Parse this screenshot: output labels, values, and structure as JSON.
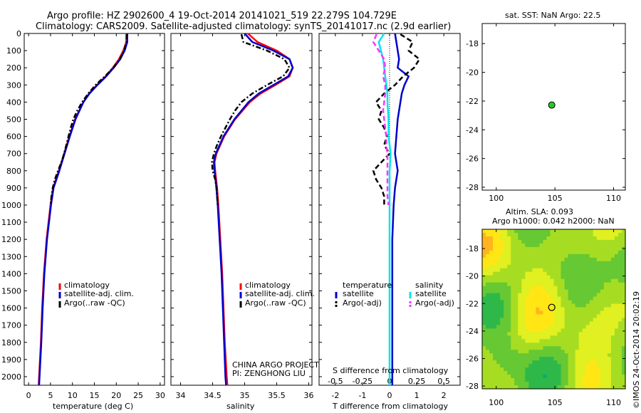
{
  "header": {
    "line1": "Argo profile: HZ 2902600_4 19-Oct-2014 20141021_519 22.279S 104.729E",
    "line2": "Climatology: CARS2009. Satellite-adjusted climatology: synTS_20141017.nc (2.9d earlier)"
  },
  "colors": {
    "climatology": "#ff0000",
    "satellite": "#0000cc",
    "argo": "#000000",
    "sal_sat": "#00e5ee",
    "sal_argo": "#ff33ff"
  },
  "chart_data": [
    {
      "type": "line",
      "panel": "temperature",
      "xlabel": "temperature (deg C)",
      "xlim": [
        -1,
        31
      ],
      "ylim": [
        2050,
        0
      ],
      "x_ticks": [
        "0",
        "5",
        "10",
        "15",
        "20",
        "25",
        "30"
      ],
      "y_ticks": [
        "0",
        "100",
        "200",
        "300",
        "400",
        "500",
        "600",
        "700",
        "800",
        "900",
        "1000",
        "1100",
        "1200",
        "1300",
        "1400",
        "1500",
        "1600",
        "1700",
        "1800",
        "1900",
        "2000"
      ],
      "legend": [
        "climatology",
        "satellite-adj. clim.",
        "Argo(..raw -QC)"
      ],
      "series": [
        {
          "name": "climatology",
          "depth": [
            0,
            50,
            100,
            150,
            200,
            250,
            300,
            350,
            400,
            500,
            600,
            700,
            800,
            900,
            1000,
            1200,
            1400,
            1600,
            1800,
            2000,
            2050
          ],
          "values": [
            22.3,
            22.3,
            21.6,
            20.6,
            19.2,
            17.6,
            15.6,
            13.8,
            12.5,
            10.6,
            9.3,
            8.1,
            6.9,
            5.6,
            5.0,
            4.1,
            3.5,
            3.1,
            2.8,
            2.4,
            2.3
          ]
        },
        {
          "name": "satellite-adj. clim.",
          "depth": [
            0,
            50,
            100,
            150,
            200,
            250,
            300,
            350,
            400,
            500,
            600,
            700,
            800,
            900,
            1000,
            1200,
            1400,
            1600,
            1800,
            2000,
            2050
          ],
          "values": [
            22.5,
            22.5,
            21.9,
            20.9,
            19.4,
            17.7,
            15.7,
            13.9,
            12.5,
            10.7,
            9.4,
            8.2,
            7.0,
            5.7,
            5.1,
            4.2,
            3.6,
            3.2,
            2.9,
            2.5,
            2.4
          ]
        },
        {
          "name": "Argo(..raw -QC)",
          "depth": [
            5,
            50,
            100,
            150,
            200,
            250,
            300,
            350,
            400,
            450,
            500,
            550,
            600,
            650,
            700,
            750,
            800,
            850,
            900,
            950,
            1000
          ],
          "values": [
            22.4,
            22.3,
            21.8,
            20.8,
            19.3,
            17.4,
            15.3,
            13.6,
            12.2,
            11.1,
            10.2,
            9.6,
            9.1,
            8.6,
            8.1,
            7.5,
            6.7,
            6.0,
            5.5,
            5.2,
            5.0
          ]
        }
      ]
    },
    {
      "type": "line",
      "panel": "salinity",
      "xlabel": "salinity",
      "xlim": [
        33.85,
        36.05
      ],
      "ylim": [
        2050,
        0
      ],
      "x_ticks": [
        "34",
        "34.5",
        "35",
        "35.5",
        "36"
      ],
      "legend": [
        "climatology",
        "satellite-adj. clim.",
        "Argo(..raw -QC)"
      ],
      "series": [
        {
          "name": "climatology",
          "depth": [
            0,
            50,
            100,
            150,
            200,
            250,
            300,
            350,
            400,
            500,
            600,
            700,
            750,
            800,
            900,
            1000,
            1200,
            1400,
            1600,
            1800,
            2000,
            2050
          ],
          "values": [
            35.05,
            35.2,
            35.5,
            35.7,
            35.75,
            35.7,
            35.48,
            35.25,
            35.08,
            34.85,
            34.68,
            34.56,
            34.53,
            34.54,
            34.57,
            34.59,
            34.62,
            34.65,
            34.67,
            34.69,
            34.72,
            34.73
          ]
        },
        {
          "name": "satellite-adj. clim.",
          "depth": [
            0,
            50,
            100,
            150,
            200,
            250,
            300,
            350,
            400,
            500,
            600,
            700,
            750,
            800,
            900,
            1000,
            1200,
            1400,
            1600,
            1800,
            2000,
            2050
          ],
          "values": [
            35.0,
            35.12,
            35.45,
            35.7,
            35.75,
            35.68,
            35.45,
            35.22,
            35.06,
            34.84,
            34.67,
            34.55,
            34.52,
            34.53,
            34.56,
            34.58,
            34.61,
            34.64,
            34.66,
            34.68,
            34.7,
            34.71
          ]
        },
        {
          "name": "Argo(..raw -QC)",
          "depth": [
            5,
            50,
            100,
            150,
            200,
            250,
            300,
            350,
            400,
            450,
            500,
            550,
            600,
            650,
            700,
            750,
            800,
            850,
            900,
            950,
            1000
          ],
          "values": [
            34.95,
            34.98,
            35.35,
            35.62,
            35.7,
            35.6,
            35.35,
            35.12,
            34.95,
            34.85,
            34.77,
            34.7,
            34.63,
            34.57,
            34.52,
            34.49,
            34.5,
            34.54,
            34.56,
            34.57,
            34.58
          ]
        }
      ]
    },
    {
      "type": "line",
      "panel": "difference",
      "xlabel": "T difference from climatology",
      "xlabel2": "S difference from climatology",
      "xlim": [
        -2.6,
        2.6
      ],
      "ylim": [
        2050,
        0
      ],
      "x_ticks": [
        "-2",
        "-1",
        "0",
        "1",
        "2"
      ],
      "s_ticks": [
        "-0.5",
        "-0.25",
        "0",
        "0.25",
        "0.5"
      ],
      "legend_title_t": "temperature",
      "legend_title_s": "salinity",
      "legend": [
        "satellite",
        "Argo(-adj)",
        "satellite",
        "Argo(-adj)"
      ],
      "series": [
        {
          "name": "satellite",
          "group": "temperature",
          "depth": [
            0,
            50,
            100,
            150,
            200,
            250,
            300,
            350,
            400,
            500,
            600,
            700,
            800,
            900,
            1000,
            1200,
            1400,
            1600,
            1800,
            2000,
            2050
          ],
          "values": [
            0.2,
            0.25,
            0.3,
            0.35,
            0.3,
            0.7,
            0.55,
            0.45,
            0.4,
            0.3,
            0.25,
            0.2,
            0.3,
            0.2,
            0.15,
            0.1,
            0.1,
            0.1,
            0.1,
            0.1,
            0.1
          ]
        },
        {
          "name": "Argo(-adj)",
          "group": "temperature",
          "depth": [
            5,
            50,
            100,
            150,
            200,
            250,
            300,
            350,
            400,
            450,
            500,
            550,
            600,
            650,
            700,
            750,
            800,
            850,
            900,
            950,
            1000
          ],
          "values": [
            0.4,
            0.85,
            0.7,
            1.1,
            0.9,
            0.5,
            0.2,
            -0.2,
            -0.5,
            -0.3,
            -0.4,
            -0.2,
            -0.1,
            -0.2,
            0.0,
            -0.3,
            -0.6,
            -0.5,
            -0.3,
            -0.2,
            -0.2
          ]
        },
        {
          "name": "satellite",
          "group": "salinity",
          "depth": [
            0,
            50,
            100,
            150,
            200,
            250,
            300,
            350,
            400,
            500,
            600,
            700,
            800,
            900,
            1000,
            1200,
            1400,
            1600,
            1800,
            2000,
            2050
          ],
          "values": [
            -0.05,
            -0.1,
            -0.08,
            -0.06,
            -0.05,
            -0.04,
            -0.03,
            -0.02,
            -0.02,
            -0.01,
            -0.01,
            0.01,
            0.0,
            0.0,
            0.0,
            0.0,
            0.0,
            0.0,
            0.0,
            0.0,
            0.0
          ]
        },
        {
          "name": "Argo(-adj)",
          "group": "salinity",
          "depth": [
            5,
            50,
            100,
            150,
            200,
            250,
            300,
            350,
            400,
            450,
            500,
            550,
            600,
            650,
            700,
            750,
            800,
            850,
            900,
            950,
            1000
          ],
          "values": [
            -0.12,
            -0.15,
            -0.1,
            -0.05,
            -0.04,
            -0.06,
            -0.04,
            -0.04,
            -0.05,
            -0.06,
            -0.05,
            -0.04,
            -0.03,
            -0.03,
            -0.02,
            -0.02,
            -0.02,
            -0.02,
            -0.02,
            -0.02,
            -0.01
          ]
        }
      ]
    },
    {
      "type": "scatter",
      "panel": "sst-map",
      "title": "sat. SST: NaN Argo: 22.5",
      "xlim": [
        98.8,
        111
      ],
      "ylim": [
        -28.2,
        -16.6
      ],
      "x_ticks": [
        "100",
        "105",
        "110"
      ],
      "y_ticks": [
        "-18",
        "-20",
        "-22",
        "-24",
        "-26",
        "-28"
      ],
      "points": [
        {
          "x": 104.729,
          "y": -22.279
        }
      ]
    },
    {
      "type": "heatmap",
      "panel": "sla-map",
      "title": "Altim. SLA: 0.093",
      "title2": "Argo h1000: 0.042 h2000: NaN",
      "xlim": [
        98.8,
        111
      ],
      "ylim": [
        -28.2,
        -16.6
      ],
      "x_ticks": [
        "100",
        "105",
        "110"
      ],
      "y_ticks": [
        "-18",
        "-20",
        "-22",
        "-24",
        "-26",
        "-28"
      ],
      "points": [
        {
          "x": 104.729,
          "y": -22.279
        }
      ]
    }
  ],
  "footer": {
    "project": "CHINA ARGO PROJECT",
    "pi": "PI: ZENGHONG LIU",
    "stamp": "©IMOS 24-Oct-2014 20:02:19"
  }
}
